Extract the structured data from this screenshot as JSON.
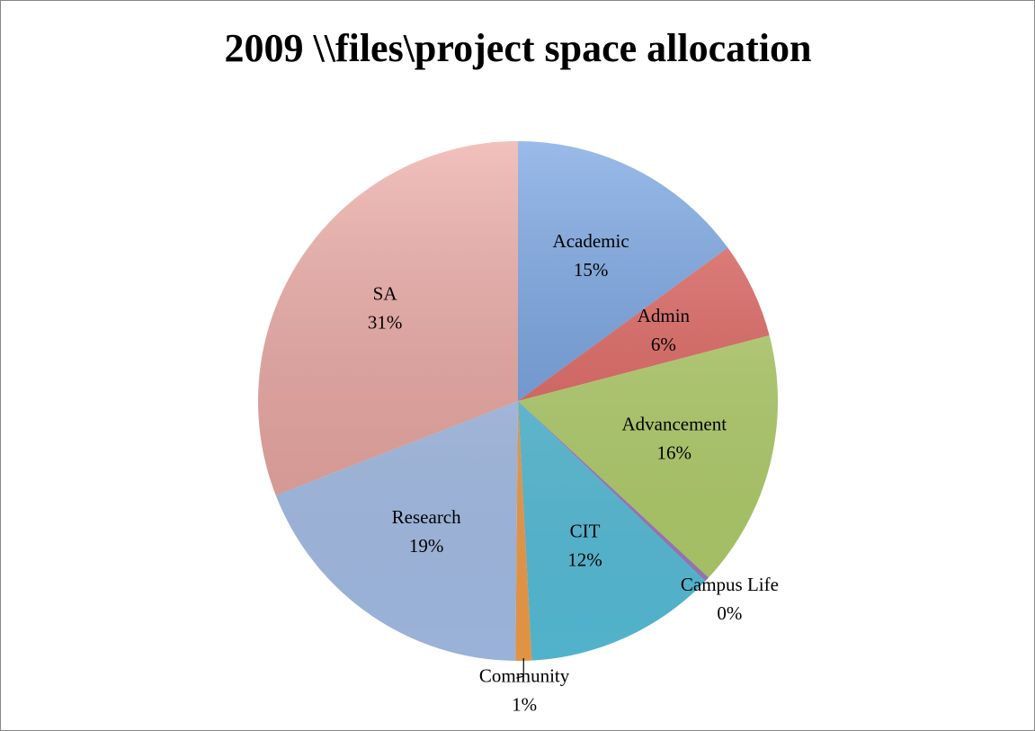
{
  "chart_data": {
    "type": "pie",
    "title": "2009 \\\\files\\project space allocation",
    "categories": [
      "Academic",
      "Admin",
      "Advancement",
      "Campus Life",
      "CIT",
      "Community",
      "Research",
      "SA"
    ],
    "values": [
      15,
      6,
      16,
      0.3,
      12,
      1,
      19,
      31
    ],
    "value_labels": [
      "15%",
      "6%",
      "16%",
      "0%",
      "12%",
      "1%",
      "19%",
      "31%"
    ],
    "colors": [
      "#6f9ee0",
      "#e0615c",
      "#b3d16a",
      "#9a7fc0",
      "#58c2dd",
      "#f5a04a",
      "#a8c2ec",
      "#eca6a1"
    ]
  }
}
